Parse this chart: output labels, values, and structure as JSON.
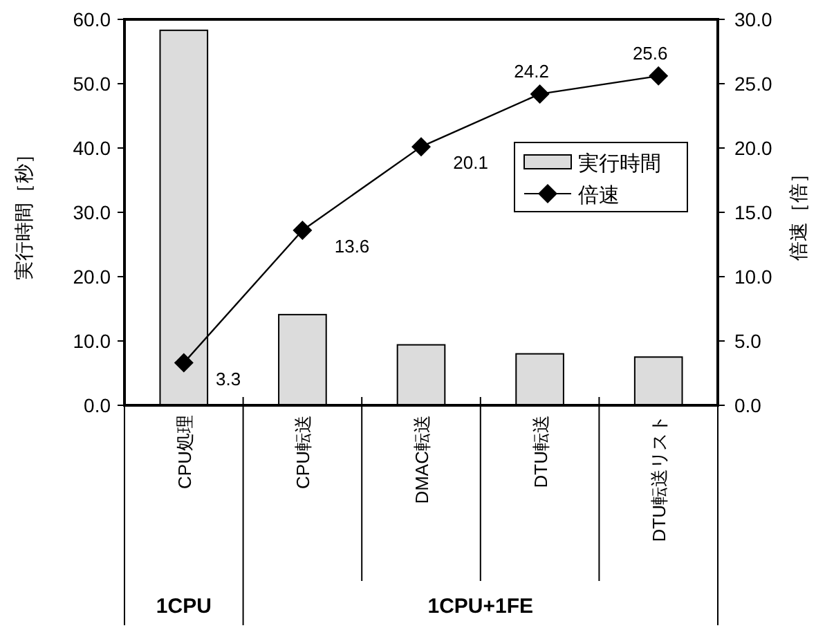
{
  "chart_data": {
    "type": "bar",
    "ylabel": "実行時間［秒］",
    "y2label": "倍速［倍］",
    "categories": [
      "CPU処理",
      "CPU転送",
      "DMAC転送",
      "DTU転送",
      "DTU転送リスト"
    ],
    "series": [
      {
        "name": "実行時間",
        "color": "#dcdcdc",
        "values": [
          58.3,
          14.1,
          9.4,
          8.0,
          7.5
        ]
      },
      {
        "name": "倍速",
        "type": "line",
        "axis": "y2",
        "color": "#000000",
        "marker": "diamond",
        "values": [
          3.3,
          13.6,
          20.1,
          24.2,
          25.6
        ],
        "value_labels": [
          "3.3",
          "13.6",
          "20.1",
          "24.2",
          "25.6"
        ]
      }
    ],
    "ylim": [
      0,
      60
    ],
    "yticks": [
      {
        "value": 0,
        "label": "0.0"
      },
      {
        "value": 10,
        "label": "10.0"
      },
      {
        "value": 20,
        "label": "20.0"
      },
      {
        "value": 30,
        "label": "30.0"
      },
      {
        "value": 40,
        "label": "40.0"
      },
      {
        "value": 50,
        "label": "50.0"
      },
      {
        "value": 60,
        "label": "60.0"
      }
    ],
    "y2lim": [
      0,
      30
    ],
    "y2ticks": [
      {
        "value": 0,
        "label": "0.0"
      },
      {
        "value": 5,
        "label": "5.0"
      },
      {
        "value": 10,
        "label": "10.0"
      },
      {
        "value": 15,
        "label": "15.0"
      },
      {
        "value": 20,
        "label": "20.0"
      },
      {
        "value": 25,
        "label": "25.0"
      },
      {
        "value": 30,
        "label": "30.0"
      }
    ],
    "annotations": [
      "1CPU",
      "1CPU+1FE"
    ],
    "legend": "right",
    "grid": false
  }
}
